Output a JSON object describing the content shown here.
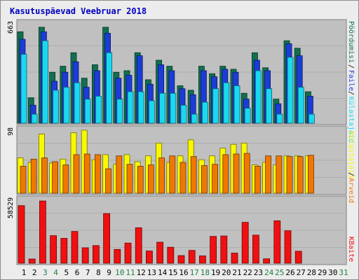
{
  "chart_data": {
    "type": "bar",
    "title": "Kasutuspäevad Veebruar 2018",
    "days": [
      "1",
      "2",
      "3",
      "4",
      "5",
      "6",
      "7",
      "8",
      "9",
      "10",
      "11",
      "12",
      "13",
      "14",
      "15",
      "16",
      "17",
      "18",
      "19",
      "20",
      "21",
      "22",
      "23",
      "24",
      "25",
      "26",
      "27",
      "28",
      "29",
      "30",
      "31"
    ],
    "weekend_days": [
      3,
      4,
      10,
      11,
      17,
      18,
      24,
      25,
      31
    ],
    "panels": [
      {
        "name": "top",
        "ymax": 663,
        "ymax_label": "663",
        "series": [
          {
            "name": "Pöördumisi",
            "color": "#107050",
            "values": [
              610,
              170,
              640,
              340,
              380,
              470,
              300,
              390,
              640,
              340,
              350,
              470,
              290,
              420,
              380,
              250,
              220,
              380,
              330,
              380,
              360,
              200,
              470,
              370,
              160,
              550,
              500,
              210
            ]
          },
          {
            "name": "Faile",
            "color": "#1c3cd8",
            "values": [
              560,
              120,
              610,
              280,
              340,
              410,
              240,
              350,
              600,
              300,
              320,
              450,
              260,
              390,
              350,
              230,
              190,
              350,
              310,
              360,
              340,
              160,
              420,
              350,
              130,
              530,
              450,
              180
            ]
          },
          {
            "name": "Külastajaid",
            "color": "#1ad8f0",
            "values": [
              460,
              60,
              550,
              220,
              240,
              270,
              160,
              180,
              470,
              160,
              210,
              210,
              150,
              200,
              200,
              120,
              60,
              140,
              230,
              270,
              250,
              100,
              350,
              230,
              60,
              440,
              240,
              60
            ]
          }
        ]
      },
      {
        "name": "middle",
        "ymax": 98,
        "ymax_label": "98",
        "series": [
          {
            "name": "Külastajaid",
            "color": "#f8f800",
            "values": [
              55,
              48,
              92,
              47,
              53,
              94,
              98,
              52,
              60,
              45,
              60,
              49,
              58,
              78,
              48,
              58,
              83,
              52,
              58,
              70,
              76,
              78,
              44,
              48,
              44,
              58,
              58,
              58
            ]
          },
          {
            "name": "Arveid",
            "color": "#f07800",
            "values": [
              42,
              53,
              55,
              49,
              44,
              60,
              61,
              60,
              38,
              58,
              45,
              42,
              44,
              55,
              58,
              48,
              57,
              43,
              45,
              60,
              61,
              62,
              42,
              58,
              58,
              57,
              57,
              59
            ]
          }
        ]
      },
      {
        "name": "bottom",
        "ymax": 58529,
        "ymax_label": "58529",
        "series": [
          {
            "name": "KBaite",
            "color": "#f01010",
            "values": [
              53500,
              3900,
              57800,
              25600,
              23100,
              29500,
              14300,
              16400,
              46100,
              12800,
              18700,
              33000,
              11400,
              19500,
              14800,
              7100,
              11900,
              6800,
              24900,
              25300,
              9400,
              38000,
              26100,
              4100,
              39400,
              30200,
              11100
            ]
          }
        ]
      }
    ],
    "right_labels": [
      {
        "text": "Pöördumisi",
        "color": "#107050"
      },
      {
        "text": "Faile",
        "color": "#1c3cd8"
      },
      {
        "text": "Külastajaid",
        "color": "#1ad8f0"
      },
      {
        "text": "Külastajaid",
        "color": "#f8f800"
      },
      {
        "text": "Arveid",
        "color": "#f07800"
      },
      {
        "text": "KBaite",
        "color": "#f01010"
      }
    ],
    "separator": "/",
    "grid": true,
    "day_color_weekday": "#000000",
    "day_color_weekend": "#208040"
  }
}
